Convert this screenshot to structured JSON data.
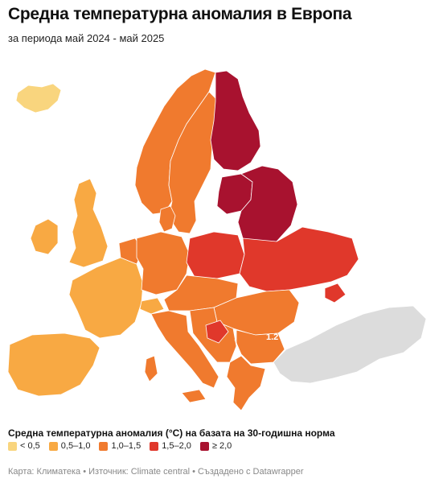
{
  "title": "Средна температурна аномалия в Европа",
  "subtitle": "за периода май 2024 - май 2025",
  "map_label": "1.2",
  "legend": {
    "title": "Средна температурна аномалия (°C) на базата на 30-годишна норма",
    "items": [
      {
        "label": "< 0,5",
        "color": "#f9d57e"
      },
      {
        "label": "0,5–1,0",
        "color": "#f8a943"
      },
      {
        "label": "1,0–1,5",
        "color": "#f07a2e"
      },
      {
        "label": "1,5–2,0",
        "color": "#e0382b"
      },
      {
        "label": "≥ 2,0",
        "color": "#a8122f"
      }
    ]
  },
  "footer": "Карта: Климатека • Източник: Climate central • Създадено с Datawrapper",
  "colors": {
    "lt05": "#f9d57e",
    "c05_10": "#f8a943",
    "c10_15": "#f07a2e",
    "c15_20": "#e0382b",
    "ge20": "#a8122f",
    "no_data": "#dcdcdc"
  }
}
